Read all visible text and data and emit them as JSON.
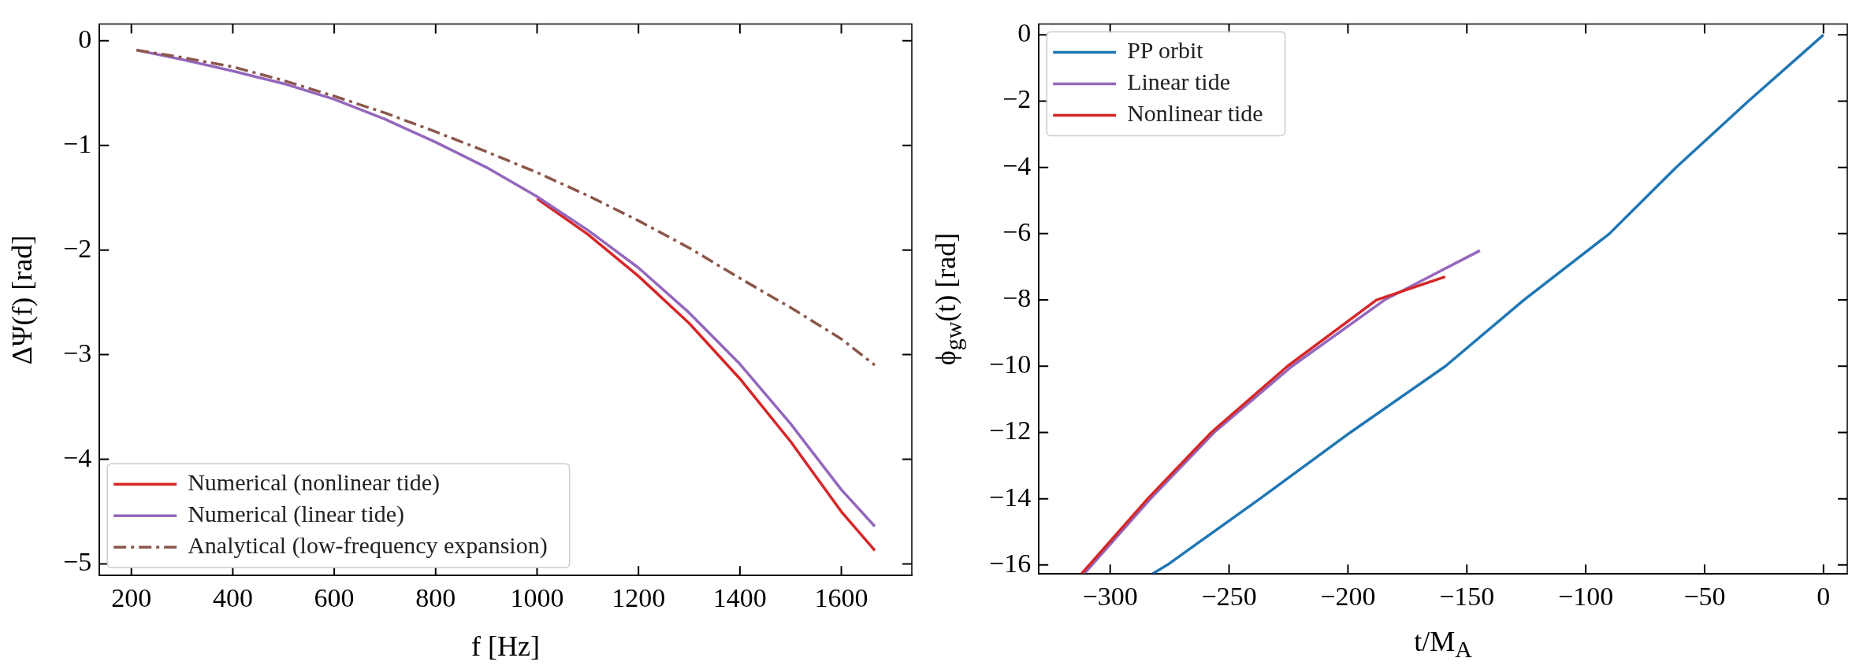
{
  "chart_data": [
    {
      "type": "line",
      "xlabel": "f [Hz]",
      "ylabel": "ΔΨ(f) [rad]",
      "xlim": [
        137,
        1739
      ],
      "ylim": [
        -5.11,
        0.16
      ],
      "xticks": [
        200,
        400,
        600,
        800,
        1000,
        1200,
        1400,
        1600
      ],
      "yticks": [
        0,
        -1,
        -2,
        -3,
        -4,
        -5
      ],
      "grid": false,
      "legend": "bottom left",
      "marker": "none",
      "series": [
        {
          "name": "Numerical (nonlinear tide)",
          "color": "#d62728",
          "line_style": "solid",
          "x": [
            1000,
            1100,
            1200,
            1300,
            1400,
            1500,
            1600,
            1666
          ],
          "values": [
            -1.51,
            -1.85,
            -2.25,
            -2.7,
            -3.23,
            -3.83,
            -4.5,
            -4.87
          ]
        },
        {
          "name": "Numerical (linear tide)",
          "color": "#9467bd",
          "line_style": "solid",
          "x": [
            210,
            300,
            400,
            500,
            600,
            700,
            800,
            900,
            1000,
            1100,
            1200,
            1300,
            1400,
            1500,
            1600,
            1666
          ],
          "values": [
            -0.09,
            -0.18,
            -0.29,
            -0.41,
            -0.56,
            -0.75,
            -0.97,
            -1.21,
            -1.49,
            -1.81,
            -2.17,
            -2.6,
            -3.09,
            -3.66,
            -4.29,
            -4.64
          ]
        },
        {
          "name": "Analytical (low-frequency expansion)",
          "color": "#8c564b",
          "line_style": "dashdot",
          "x": [
            210,
            300,
            400,
            500,
            600,
            700,
            800,
            900,
            1000,
            1100,
            1200,
            1300,
            1400,
            1500,
            1600,
            1666
          ],
          "values": [
            -0.09,
            -0.16,
            -0.25,
            -0.38,
            -0.53,
            -0.69,
            -0.87,
            -1.06,
            -1.26,
            -1.48,
            -1.72,
            -1.98,
            -2.27,
            -2.55,
            -2.85,
            -3.1
          ]
        }
      ]
    },
    {
      "type": "line",
      "xlabel": "t/M$_{A}$",
      "ylabel": "ϕ$_{gw}$(t) [rad]",
      "xlim": [
        -330,
        10
      ],
      "ylim": [
        -16.27,
        0.33
      ],
      "xticks": [
        -300,
        -250,
        -200,
        -150,
        -100,
        -50,
        0
      ],
      "yticks": [
        0,
        -2,
        -4,
        -6,
        -8,
        -10,
        -12,
        -14,
        -16
      ],
      "grid": false,
      "legend": "top left",
      "marker": "none",
      "series": [
        {
          "name": "PP orbit",
          "color": "#1f77b4",
          "line_style": "solid",
          "x": [
            -282.3,
            -276,
            -237,
            -199,
            -159,
            -126,
            -90,
            -62,
            -31.6,
            0
          ],
          "values": [
            -16.27,
            -16,
            -14,
            -12,
            -10,
            -8,
            -6,
            -4,
            -2,
            0
          ]
        },
        {
          "name": "Linear tide",
          "color": "#9467bd",
          "line_style": "solid",
          "x": [
            -311,
            -283,
            -256.3,
            -223.5,
            -184.6,
            -144.5
          ],
          "values": [
            -16.27,
            -14,
            -12,
            -10,
            -8,
            -6.51
          ]
        },
        {
          "name": "Nonlinear tide",
          "color": "#d62728",
          "line_style": "solid",
          "x": [
            -312.1,
            -284.2,
            -257.5,
            -225.4,
            -188,
            -159.1
          ],
          "values": [
            -16.27,
            -14,
            -12,
            -10,
            -8,
            -7.3
          ]
        }
      ]
    }
  ]
}
